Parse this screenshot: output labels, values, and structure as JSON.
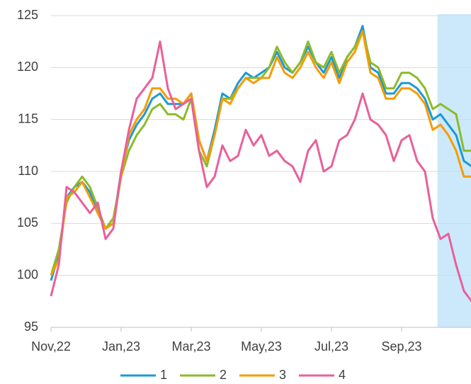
{
  "chart_data": {
    "type": "line",
    "categories": [
      "Nov,22",
      null,
      null,
      null,
      null,
      null,
      null,
      null,
      null,
      "Jan,23",
      null,
      null,
      null,
      null,
      null,
      null,
      null,
      null,
      "Mar,23",
      null,
      null,
      null,
      null,
      null,
      null,
      null,
      null,
      "May,23",
      null,
      null,
      null,
      null,
      null,
      null,
      null,
      null,
      "Jul,23",
      null,
      null,
      null,
      null,
      null,
      null,
      null,
      null,
      "Sep,23",
      null,
      null,
      null,
      null,
      null,
      null,
      null,
      null,
      null
    ],
    "series": [
      {
        "name": "1",
        "color": "#1b9ad6",
        "values": [
          99.5,
          102,
          107.5,
          108.5,
          109,
          108,
          106,
          104.5,
          105,
          110,
          113,
          114.5,
          115.5,
          117,
          117.5,
          116.5,
          116.5,
          116.5,
          117.5,
          113,
          111,
          114,
          117.5,
          117,
          118.5,
          119.5,
          119,
          119.5,
          120,
          121.5,
          120,
          119.5,
          120.5,
          122,
          120.5,
          119.5,
          121,
          119,
          121,
          122,
          124,
          120,
          119.5,
          117.5,
          117.5,
          118.5,
          118.5,
          118,
          117,
          115,
          115.5,
          114.5,
          113.5,
          111,
          110.5
        ]
      },
      {
        "name": "2",
        "color": "#8cba2a",
        "values": [
          100,
          102.5,
          107,
          108.5,
          109.5,
          108.5,
          106.5,
          104.5,
          105.5,
          109.5,
          112,
          113.5,
          114.5,
          116,
          116.5,
          115.5,
          115.5,
          115,
          117,
          112,
          110.5,
          113.5,
          117,
          117,
          118,
          119,
          119,
          119,
          120,
          122,
          120.5,
          119.5,
          120.5,
          122.5,
          120.5,
          120,
          121.5,
          119.5,
          121,
          122,
          123.5,
          120.5,
          120,
          118,
          118,
          119.5,
          119.5,
          119,
          118,
          116,
          116.5,
          116,
          115.5,
          112,
          112
        ]
      },
      {
        "name": "3",
        "color": "#f59c00",
        "values": [
          100,
          101.5,
          107.5,
          108,
          109,
          107.5,
          106,
          104.5,
          105,
          109.5,
          113.5,
          115,
          116,
          118,
          118,
          117,
          117,
          116.5,
          117.5,
          113,
          111,
          113.5,
          117,
          116.5,
          118,
          119,
          118.5,
          119,
          119,
          121,
          119.5,
          119,
          120,
          121.5,
          120,
          119,
          120.5,
          118.5,
          120.5,
          121.5,
          123.5,
          119.5,
          119,
          117,
          117,
          118,
          118,
          117.5,
          116.5,
          114,
          114.5,
          113.5,
          112,
          109.5,
          109.5
        ]
      },
      {
        "name": "4",
        "color": "#e8609a",
        "values": [
          98,
          101,
          108.5,
          108,
          107,
          106,
          107,
          103.5,
          104.5,
          110,
          114,
          117,
          118,
          119,
          122.5,
          118,
          116,
          116.5,
          117,
          112,
          108.5,
          109.5,
          112.5,
          111,
          111.5,
          114,
          112.5,
          113.5,
          111.5,
          112,
          111,
          110.5,
          109,
          112,
          113,
          110,
          110.5,
          113,
          113.5,
          115,
          117.5,
          115,
          114.5,
          113.5,
          111,
          113,
          113.5,
          111,
          110,
          105.5,
          103.5,
          104,
          101,
          98.5,
          97.5
        ]
      }
    ],
    "ylim": [
      95,
      125
    ],
    "yticks": [
      95,
      100,
      105,
      110,
      115,
      120,
      125
    ],
    "grid": true,
    "highlight": {
      "from": 49.6,
      "to": 54,
      "color": "#cce9fb"
    },
    "legend": "bottom"
  }
}
